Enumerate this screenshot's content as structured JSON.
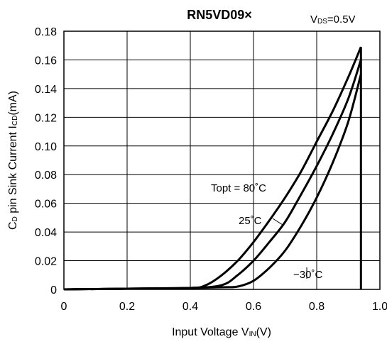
{
  "chart_data": {
    "type": "line",
    "title": "RN5VD09×",
    "condition": {
      "main": "V",
      "sub": "DS",
      "rest": "=0.5V"
    },
    "xlabel": {
      "main": "Input Voltage V",
      "sub": "IN",
      "rest": "(V)"
    },
    "ylabel": {
      "pre": "C",
      "sub1": "D",
      "mid": " pin Sink Current I",
      "sub2": "CD",
      "rest": "(mA)"
    },
    "xlim": [
      0,
      1.0
    ],
    "ylim": [
      0,
      0.18
    ],
    "xticks": [
      0,
      0.2,
      0.4,
      0.6,
      0.8,
      1.0
    ],
    "xtick_labels": [
      "0",
      "0.2",
      "0.4",
      "0.6",
      "0.8",
      "1.0"
    ],
    "yticks": [
      0,
      0.02,
      0.04,
      0.06,
      0.08,
      0.1,
      0.12,
      0.14,
      0.16,
      0.18
    ],
    "ytick_labels": [
      "0",
      "0.02",
      "0.04",
      "0.06",
      "0.08",
      "0.10",
      "0.12",
      "0.14",
      "0.16",
      "0.18"
    ],
    "grid": true,
    "series": [
      {
        "name": "Topt = 80˚C",
        "x": [
          0,
          0.2,
          0.4,
          0.45,
          0.5,
          0.55,
          0.6,
          0.65,
          0.7,
          0.75,
          0.8,
          0.85,
          0.9,
          0.94
        ],
        "y": [
          0,
          0.0005,
          0.001,
          0.003,
          0.01,
          0.02,
          0.033,
          0.048,
          0.064,
          0.082,
          0.103,
          0.124,
          0.148,
          0.169
        ]
      },
      {
        "name": "25˚C",
        "x": [
          0,
          0.2,
          0.4,
          0.5,
          0.55,
          0.6,
          0.65,
          0.7,
          0.75,
          0.8,
          0.85,
          0.9,
          0.94
        ],
        "y": [
          0,
          0.0005,
          0.001,
          0.003,
          0.01,
          0.02,
          0.033,
          0.047,
          0.066,
          0.086,
          0.108,
          0.133,
          0.16
        ]
      },
      {
        "name": "−30˚C",
        "x": [
          0,
          0.2,
          0.4,
          0.5,
          0.55,
          0.6,
          0.65,
          0.7,
          0.75,
          0.8,
          0.85,
          0.9,
          0.94
        ],
        "y": [
          0,
          0.0005,
          0.001,
          0.0015,
          0.002,
          0.006,
          0.015,
          0.027,
          0.044,
          0.064,
          0.088,
          0.117,
          0.15
        ]
      }
    ]
  }
}
